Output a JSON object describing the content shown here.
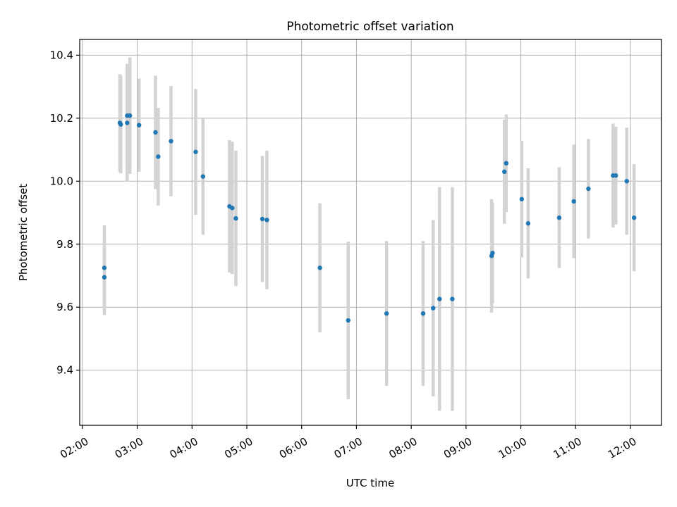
{
  "chart_data": {
    "type": "scatter",
    "title": "Photometric offset variation",
    "xlabel": "UTC time",
    "ylabel": "Photometric offset",
    "x_unit": "UTC hours (HH:MM)",
    "xlim": [
      "01:57",
      "12:34"
    ],
    "ylim": [
      9.225,
      10.45
    ],
    "x_ticks": [
      "02:00",
      "03:00",
      "04:00",
      "05:00",
      "06:00",
      "07:00",
      "08:00",
      "09:00",
      "10:00",
      "11:00",
      "12:00"
    ],
    "y_ticks": [
      9.4,
      9.6,
      9.8,
      10.0,
      10.2,
      10.4
    ],
    "y_tick_labels": [
      "9.4",
      "9.6",
      "9.8",
      "10.0",
      "10.2",
      "10.4"
    ],
    "grid": true,
    "legend": false,
    "colors": {
      "points": "#1f77b4",
      "error_bars": "#d3d3d3"
    },
    "points": [
      {
        "x": "02:24",
        "y": 9.725,
        "yerr": 0.135
      },
      {
        "x": "02:24",
        "y": 9.695,
        "yerr": 0.12
      },
      {
        "x": "02:41",
        "y": 10.185,
        "yerr": 0.155
      },
      {
        "x": "02:42",
        "y": 10.18,
        "yerr": 0.155
      },
      {
        "x": "02:49",
        "y": 10.185,
        "yerr": 0.185
      },
      {
        "x": "02:49",
        "y": 10.208,
        "yerr": 0.165
      },
      {
        "x": "02:52",
        "y": 10.208,
        "yerr": 0.185
      },
      {
        "x": "03:02",
        "y": 10.178,
        "yerr": 0.148
      },
      {
        "x": "03:20",
        "y": 10.155,
        "yerr": 0.18
      },
      {
        "x": "03:23",
        "y": 10.078,
        "yerr": 0.155
      },
      {
        "x": "03:37",
        "y": 10.127,
        "yerr": 0.175
      },
      {
        "x": "04:04",
        "y": 10.093,
        "yerr": 0.2
      },
      {
        "x": "04:12",
        "y": 10.015,
        "yerr": 0.185
      },
      {
        "x": "04:41",
        "y": 9.92,
        "yerr": 0.21
      },
      {
        "x": "04:44",
        "y": 9.915,
        "yerr": 0.21
      },
      {
        "x": "04:48",
        "y": 9.882,
        "yerr": 0.215
      },
      {
        "x": "05:17",
        "y": 9.88,
        "yerr": 0.2
      },
      {
        "x": "05:22",
        "y": 9.877,
        "yerr": 0.22
      },
      {
        "x": "06:20",
        "y": 9.725,
        "yerr": 0.205
      },
      {
        "x": "06:51",
        "y": 9.558,
        "yerr": 0.25
      },
      {
        "x": "07:33",
        "y": 9.58,
        "yerr": 0.23
      },
      {
        "x": "08:13",
        "y": 9.58,
        "yerr": 0.23
      },
      {
        "x": "08:24",
        "y": 9.597,
        "yerr": 0.28
      },
      {
        "x": "08:31",
        "y": 9.626,
        "yerr": 0.355
      },
      {
        "x": "08:45",
        "y": 9.626,
        "yerr": 0.355
      },
      {
        "x": "09:28",
        "y": 9.763,
        "yerr": 0.18
      },
      {
        "x": "09:29",
        "y": 9.772,
        "yerr": 0.16
      },
      {
        "x": "09:42",
        "y": 10.03,
        "yerr": 0.165
      },
      {
        "x": "09:44",
        "y": 10.057,
        "yerr": 0.155
      },
      {
        "x": "10:01",
        "y": 9.943,
        "yerr": 0.185
      },
      {
        "x": "10:08",
        "y": 9.866,
        "yerr": 0.175
      },
      {
        "x": "10:42",
        "y": 9.884,
        "yerr": 0.16
      },
      {
        "x": "10:58",
        "y": 9.936,
        "yerr": 0.18
      },
      {
        "x": "11:14",
        "y": 9.976,
        "yerr": 0.158
      },
      {
        "x": "11:41",
        "y": 10.018,
        "yerr": 0.165
      },
      {
        "x": "11:44",
        "y": 10.018,
        "yerr": 0.155
      },
      {
        "x": "11:56",
        "y": 10.0,
        "yerr": 0.17
      },
      {
        "x": "12:04",
        "y": 9.884,
        "yerr": 0.17
      }
    ]
  }
}
